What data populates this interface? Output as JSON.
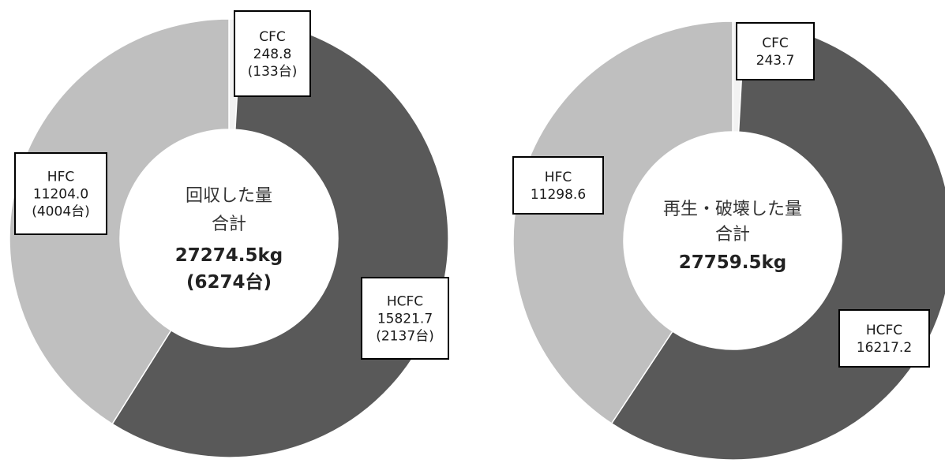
{
  "chart_data": [
    {
      "type": "pie",
      "slices": [
        {
          "name": "CFC",
          "value": 248.8,
          "units": "(133台)",
          "color": "#f2f2f2"
        },
        {
          "name": "HCFC",
          "value": 15821.7,
          "units": "(2137台)",
          "color": "#595959"
        },
        {
          "name": "HFC",
          "value": 11204.0,
          "units": "(4004台)",
          "color": "#bfbfbf"
        }
      ],
      "labels": [
        {
          "lines": [
            "CFC",
            "248.8",
            "(133台)"
          ]
        },
        {
          "lines": [
            "HCFC",
            "15821.7",
            "(2137台)"
          ]
        },
        {
          "lines": [
            "HFC",
            "11204.0",
            "(4004台)"
          ]
        }
      ],
      "center_text": [
        "回収した量",
        "合計",
        "27274.5kg",
        "(6274台)"
      ]
    },
    {
      "type": "pie",
      "slices": [
        {
          "name": "CFC",
          "value": 243.7,
          "color": "#f2f2f2"
        },
        {
          "name": "HCFC",
          "value": 16217.2,
          "color": "#595959"
        },
        {
          "name": "HFC",
          "value": 11298.6,
          "color": "#bfbfbf"
        }
      ],
      "labels": [
        {
          "lines": [
            "CFC",
            "243.7"
          ]
        },
        {
          "lines": [
            "HCFC",
            "16217.2"
          ]
        },
        {
          "lines": [
            "HFC",
            "11298.6"
          ]
        }
      ],
      "center_text": [
        "再生・破壊した量",
        "合計",
        "27759.5kg"
      ]
    }
  ]
}
